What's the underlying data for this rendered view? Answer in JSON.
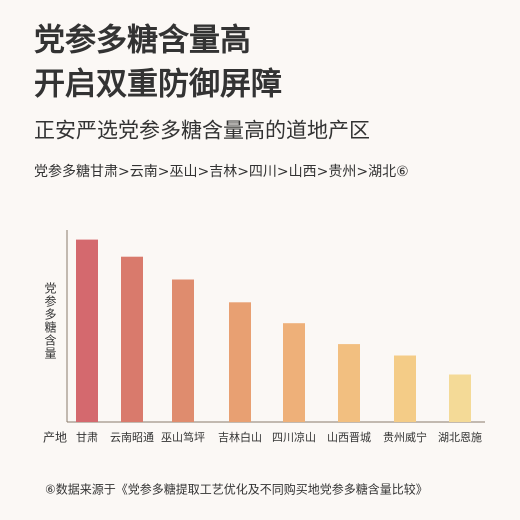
{
  "chart_data": {
    "type": "bar",
    "title": "党参多糖含量高",
    "title2": "开启双重防御屏障",
    "subtitle": "正安严选党参多糖含量高的道地产区",
    "ranking": "党参多糖甘肃>云南>巫山>吉林>四川>山西>贵州>湖北⑥",
    "y_label": "党参多糖含量",
    "x_label": "产地",
    "categories": [
      "甘肃",
      "云南昭通",
      "巫山笃坪",
      "吉林白山",
      "四川凉山",
      "山西晋城",
      "贵州威宁",
      "湖北恩施"
    ],
    "values": [
      96,
      87,
      75,
      63,
      52,
      41,
      35,
      25
    ],
    "colors": [
      "#d4696e",
      "#d97a6c",
      "#df8c6e",
      "#e8a072",
      "#eeb079",
      "#f2bf80",
      "#f4cc87",
      "#f4da97"
    ],
    "ylim": [
      0,
      100
    ],
    "footnote": "⑥数据来源于《党参多糖提取工艺优化及不同购买地党参多糖含量比较》"
  }
}
